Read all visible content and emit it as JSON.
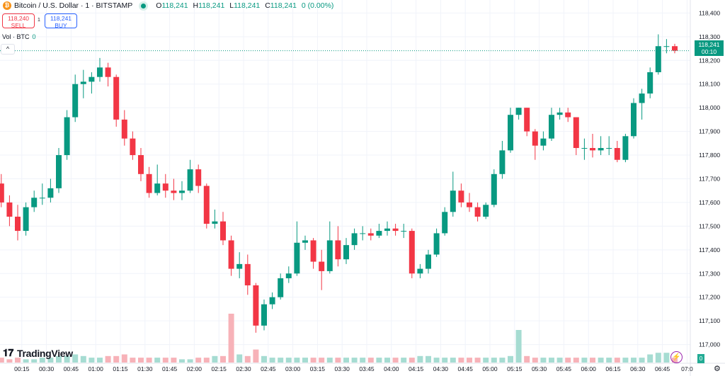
{
  "header": {
    "symbol_title": "Bitcoin / U.S. Dollar · 1 · BITSTAMP",
    "ohlc": [
      {
        "key": "O",
        "value": "118,241"
      },
      {
        "key": "H",
        "value": "118,241"
      },
      {
        "key": "L",
        "value": "118,241"
      },
      {
        "key": "C",
        "value": "118,241"
      }
    ],
    "change": "0 (0.00%)",
    "icon": "bitcoin-icon"
  },
  "trade": {
    "sell_price": "118,240",
    "sell_label": "SELL",
    "spread": "1",
    "buy_price": "118,241",
    "buy_label": "BUY"
  },
  "volume_legend": {
    "label": "Vol · BTC",
    "value": "0"
  },
  "collapse_label": "^",
  "current_price": {
    "price": "118,241",
    "countdown": "00:10",
    "volume": "0"
  },
  "branding": {
    "logo_text": "TradingView",
    "logo_mark": "17"
  },
  "colors": {
    "up": "#089981",
    "down": "#f23645",
    "up_vol": "#a6dcd2",
    "down_vol": "#f7b2b8",
    "price_line": "#089981",
    "grid": "#f0f3fa"
  },
  "chart_data": {
    "type": "candlestick",
    "interval": "1 minute (approximated as 5-minute OHLC)",
    "ylim": [
      116930,
      118455
    ],
    "grid": true,
    "price_ticks": [
      "118,400",
      "118,300",
      "118,200",
      "118,100",
      "118,000",
      "117,900",
      "117,800",
      "117,700",
      "117,600",
      "117,500",
      "117,400",
      "117,300",
      "117,200",
      "117,100",
      "117,000"
    ],
    "time_ticks": [
      "00:15",
      "00:30",
      "00:45",
      "01:00",
      "01:15",
      "01:30",
      "01:45",
      "02:00",
      "02:15",
      "02:30",
      "02:45",
      "03:00",
      "03:15",
      "03:30",
      "03:45",
      "04:00",
      "04:15",
      "04:30",
      "04:45",
      "05:00",
      "05:15",
      "05:30",
      "05:45",
      "06:00",
      "06:15",
      "06:30",
      "06:45",
      "07:0"
    ],
    "candles_columns": [
      "minute",
      "open",
      "high",
      "low",
      "close"
    ],
    "candles": [
      [
        0,
        117680,
        117720,
        117580,
        117600
      ],
      [
        5,
        117600,
        117630,
        117500,
        117540
      ],
      [
        10,
        117540,
        117590,
        117440,
        117480
      ],
      [
        15,
        117480,
        117600,
        117460,
        117580
      ],
      [
        20,
        117580,
        117650,
        117560,
        117620
      ],
      [
        25,
        117620,
        117680,
        117590,
        117620
      ],
      [
        30,
        117620,
        117700,
        117600,
        117660
      ],
      [
        35,
        117660,
        117830,
        117640,
        117800
      ],
      [
        40,
        117800,
        117990,
        117780,
        117960
      ],
      [
        45,
        117960,
        118140,
        117940,
        118100
      ],
      [
        50,
        118100,
        118160,
        118040,
        118110
      ],
      [
        55,
        118110,
        118150,
        118060,
        118130
      ],
      [
        60,
        118130,
        118210,
        118110,
        118170
      ],
      [
        65,
        118170,
        118190,
        118090,
        118130
      ],
      [
        70,
        118130,
        118140,
        117920,
        117950
      ],
      [
        75,
        117950,
        117990,
        117840,
        117870
      ],
      [
        80,
        117870,
        117900,
        117780,
        117800
      ],
      [
        85,
        117800,
        117830,
        117690,
        117720
      ],
      [
        90,
        117720,
        117750,
        117620,
        117640
      ],
      [
        95,
        117640,
        117760,
        117630,
        117680
      ],
      [
        100,
        117680,
        117720,
        117620,
        117650
      ],
      [
        105,
        117650,
        117700,
        117610,
        117640
      ],
      [
        110,
        117640,
        117690,
        117610,
        117650
      ],
      [
        115,
        117650,
        117780,
        117640,
        117740
      ],
      [
        120,
        117740,
        117760,
        117640,
        117670
      ],
      [
        125,
        117670,
        117680,
        117490,
        117510
      ],
      [
        130,
        117510,
        117570,
        117490,
        117520
      ],
      [
        135,
        117520,
        117560,
        117420,
        117440
      ],
      [
        140,
        117440,
        117460,
        117290,
        117320
      ],
      [
        145,
        117320,
        117390,
        117280,
        117340
      ],
      [
        150,
        117340,
        117380,
        117210,
        117250
      ],
      [
        155,
        117250,
        117260,
        117050,
        117080
      ],
      [
        160,
        117080,
        117190,
        117060,
        117170
      ],
      [
        165,
        117170,
        117220,
        117150,
        117200
      ],
      [
        170,
        117200,
        117300,
        117190,
        117280
      ],
      [
        175,
        117280,
        117330,
        117260,
        117300
      ],
      [
        180,
        117300,
        117520,
        117290,
        117430
      ],
      [
        185,
        117430,
        117460,
        117400,
        117440
      ],
      [
        190,
        117440,
        117450,
        117320,
        117350
      ],
      [
        195,
        117350,
        117400,
        117230,
        117310
      ],
      [
        200,
        117310,
        117520,
        117300,
        117440
      ],
      [
        205,
        117440,
        117500,
        117330,
        117360
      ],
      [
        210,
        117360,
        117450,
        117340,
        117420
      ],
      [
        215,
        117420,
        117490,
        117400,
        117470
      ],
      [
        220,
        117470,
        117500,
        117440,
        117470
      ],
      [
        225,
        117470,
        117490,
        117440,
        117460
      ],
      [
        230,
        117460,
        117510,
        117450,
        117480
      ],
      [
        235,
        117480,
        117520,
        117460,
        117490
      ],
      [
        240,
        117490,
        117510,
        117460,
        117480
      ],
      [
        245,
        117480,
        117510,
        117450,
        117480
      ],
      [
        250,
        117480,
        117490,
        117280,
        117300
      ],
      [
        255,
        117300,
        117340,
        117280,
        117320
      ],
      [
        260,
        117320,
        117400,
        117300,
        117380
      ],
      [
        265,
        117380,
        117490,
        117370,
        117470
      ],
      [
        270,
        117470,
        117580,
        117460,
        117560
      ],
      [
        275,
        117560,
        117730,
        117540,
        117650
      ],
      [
        280,
        117650,
        117680,
        117580,
        117600
      ],
      [
        285,
        117600,
        117640,
        117560,
        117580
      ],
      [
        290,
        117580,
        117600,
        117520,
        117540
      ],
      [
        295,
        117540,
        117600,
        117530,
        117590
      ],
      [
        300,
        117590,
        117740,
        117580,
        117720
      ],
      [
        305,
        117720,
        117860,
        117700,
        117820
      ],
      [
        310,
        117820,
        118000,
        117810,
        117970
      ],
      [
        315,
        117970,
        118000,
        117950,
        118000
      ],
      [
        320,
        118000,
        118000,
        117880,
        117900
      ],
      [
        325,
        117900,
        117910,
        117780,
        117840
      ],
      [
        330,
        117840,
        117900,
        117820,
        117870
      ],
      [
        335,
        117870,
        118000,
        117860,
        117970
      ],
      [
        340,
        117970,
        118000,
        117950,
        117980
      ],
      [
        345,
        117980,
        118000,
        117940,
        117960
      ],
      [
        350,
        117960,
        117960,
        117800,
        117830
      ],
      [
        355,
        117830,
        117870,
        117780,
        117830
      ],
      [
        360,
        117830,
        117890,
        117790,
        117820
      ],
      [
        365,
        117820,
        117880,
        117800,
        117830
      ],
      [
        370,
        117830,
        117880,
        117800,
        117830
      ],
      [
        375,
        117830,
        117860,
        117770,
        117780
      ],
      [
        380,
        117780,
        117890,
        117770,
        117880
      ],
      [
        385,
        117880,
        118040,
        117870,
        118020
      ],
      [
        390,
        118020,
        118080,
        117950,
        118060
      ],
      [
        395,
        118060,
        118170,
        118040,
        118150
      ],
      [
        400,
        118150,
        118310,
        118140,
        118260
      ],
      [
        405,
        118260,
        118290,
        118230,
        118260
      ],
      [
        410,
        118260,
        118270,
        118230,
        118241
      ]
    ],
    "volume_relative": [
      3,
      2,
      3,
      2,
      2,
      3,
      3,
      4,
      4,
      5,
      4,
      3,
      3,
      4,
      4,
      5,
      3,
      3,
      3,
      3,
      3,
      3,
      2,
      2,
      3,
      3,
      4,
      4,
      30,
      5,
      4,
      8,
      4,
      3,
      3,
      3,
      3,
      3,
      3,
      3,
      3,
      3,
      3,
      3,
      3,
      3,
      3,
      3,
      3,
      3,
      3,
      4,
      4,
      3,
      3,
      3,
      3,
      3,
      3,
      3,
      3,
      3,
      4,
      20,
      4,
      3,
      3,
      3,
      3,
      3,
      3,
      3,
      3,
      3,
      3,
      3,
      3,
      3,
      3,
      5,
      6,
      6,
      3
    ]
  }
}
